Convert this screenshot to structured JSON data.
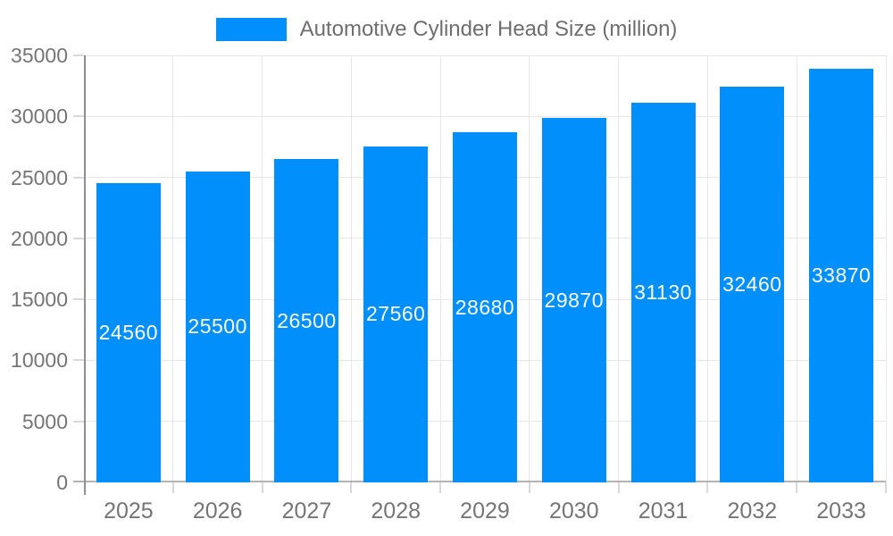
{
  "legend": {
    "label": "Automotive Cylinder Head Size (million)"
  },
  "chart_data": {
    "type": "bar",
    "title": "Automotive Cylinder Head Size (million)",
    "categories": [
      "2025",
      "2026",
      "2027",
      "2028",
      "2029",
      "2030",
      "2031",
      "2032",
      "2033"
    ],
    "series": [
      {
        "name": "Automotive Cylinder Head Size (million)",
        "values": [
          24560,
          25500,
          26500,
          27560,
          28680,
          29870,
          31130,
          32460,
          33870
        ]
      }
    ],
    "value_labels_shown": true,
    "xlabel": "",
    "ylabel": "",
    "ylim": [
      0,
      35000
    ],
    "ytick_step": 5000,
    "ytick_labels": [
      "0",
      "5000",
      "10000",
      "15000",
      "20000",
      "25000",
      "30000",
      "35000"
    ],
    "grid": true,
    "legend_position": "top"
  },
  "colors": {
    "bar_fill": "#008FFB",
    "bar_value_text": "#ffffff",
    "gridline": "#e7e7e7",
    "tick_mark": "#d9d9d9",
    "x_axis_line": "#b3b3b3",
    "y_axis_line": "#8f8f8f",
    "axis_label_text": "#757575",
    "legend_text": "#6e6e6e",
    "background": "#ffffff"
  }
}
